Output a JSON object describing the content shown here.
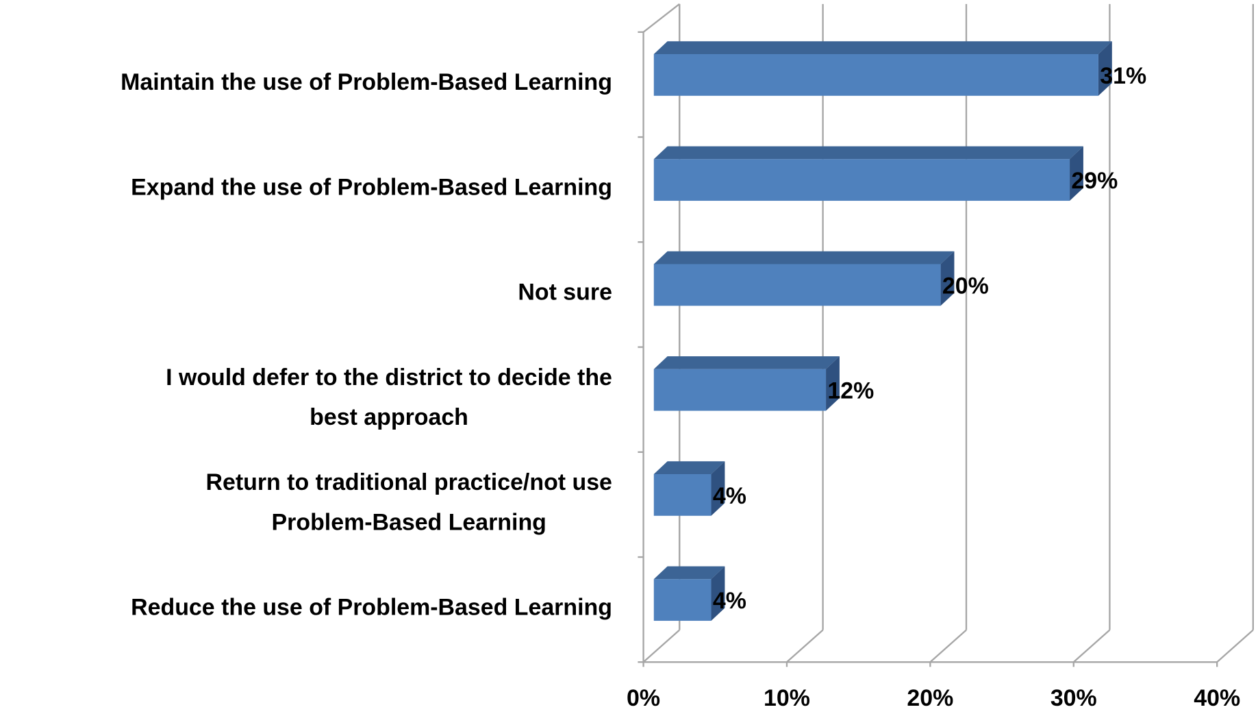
{
  "chart_data": {
    "type": "bar3d_horizontal",
    "categories": [
      "Maintain the use of Problem-Based Learning",
      "Expand the use of Problem-Based Learning",
      "Not sure",
      "I would defer to the district to decide the\nbest approach",
      "Return to traditional practice/not use\nProblem-Based Learning",
      "Reduce the use of Problem-Based Learning"
    ],
    "values": [
      31,
      29,
      20,
      12,
      4,
      4
    ],
    "value_labels": [
      "31%",
      "29%",
      "20%",
      "12%",
      "4%",
      "4%"
    ],
    "color": "#4f81bd",
    "xlim": [
      0,
      40
    ],
    "xticks": [
      {
        "value": 0,
        "label": "0%"
      },
      {
        "value": 10,
        "label": "10%"
      },
      {
        "value": 20,
        "label": "20%"
      },
      {
        "value": 30,
        "label": "30%"
      },
      {
        "value": 40,
        "label": "40%"
      }
    ],
    "grid": true
  }
}
